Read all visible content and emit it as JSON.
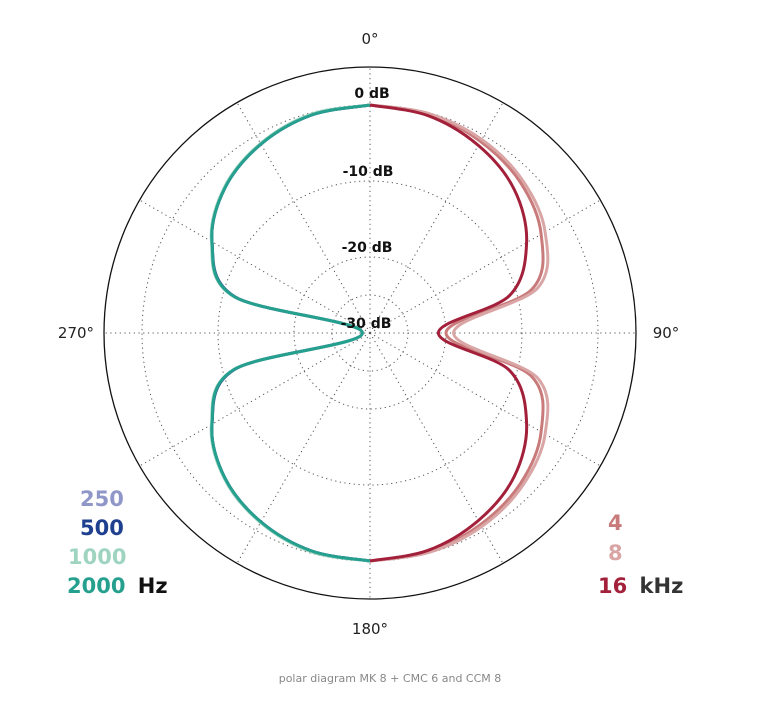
{
  "chart_data": {
    "type": "polar",
    "angle_labels": [
      "0°",
      "90°",
      "180°",
      "270°"
    ],
    "db_labels": [
      "0 dB",
      "-10 dB",
      "-20 dB",
      "-30 dB"
    ],
    "rlim": [
      -30,
      0
    ],
    "grid": true,
    "pattern": "figure-8",
    "legend_low": {
      "placement": "bottom-left",
      "unit": "Hz",
      "entries": [
        {
          "label": "250",
          "color": "#8f96c8"
        },
        {
          "label": "500",
          "color": "#1f3f8f"
        },
        {
          "label": "1000",
          "color": "#9fd4c0"
        },
        {
          "label": "2000",
          "color": "#26a08e"
        }
      ]
    },
    "legend_high": {
      "placement": "bottom-right",
      "unit": "kHz",
      "entries": [
        {
          "label": "4",
          "color": "#c97b7b"
        },
        {
          "label": "8",
          "color": "#d9a5a5"
        },
        {
          "label": "16",
          "color": "#a3203a"
        }
      ]
    },
    "series": [
      {
        "label": "250",
        "side": "left",
        "color": "#8f96c8",
        "points": [
          [
            0,
            0
          ],
          [
            15,
            -0.3
          ],
          [
            30,
            -1.3
          ],
          [
            45,
            -3.0
          ],
          [
            60,
            -6.0
          ],
          [
            75,
            -11.5
          ],
          [
            90,
            -29
          ],
          [
            105,
            -11.5
          ],
          [
            120,
            -6.0
          ],
          [
            135,
            -3.0
          ],
          [
            150,
            -1.3
          ],
          [
            165,
            -0.3
          ],
          [
            180,
            0
          ]
        ]
      },
      {
        "label": "500",
        "side": "left",
        "color": "#1f3f8f",
        "points": [
          [
            0,
            0
          ],
          [
            15,
            -0.3
          ],
          [
            30,
            -1.3
          ],
          [
            45,
            -3.0
          ],
          [
            60,
            -6.0
          ],
          [
            75,
            -11.6
          ],
          [
            90,
            -29
          ],
          [
            105,
            -11.6
          ],
          [
            120,
            -6.0
          ],
          [
            135,
            -3.0
          ],
          [
            150,
            -1.3
          ],
          [
            165,
            -0.3
          ],
          [
            180,
            0
          ]
        ]
      },
      {
        "label": "1000",
        "side": "left",
        "color": "#9fd4c0",
        "points": [
          [
            0,
            0
          ],
          [
            15,
            -0.2
          ],
          [
            30,
            -1.2
          ],
          [
            45,
            -2.9
          ],
          [
            60,
            -5.9
          ],
          [
            75,
            -11.4
          ],
          [
            90,
            -29
          ],
          [
            105,
            -11.4
          ],
          [
            120,
            -5.9
          ],
          [
            135,
            -2.9
          ],
          [
            150,
            -1.2
          ],
          [
            165,
            -0.2
          ],
          [
            180,
            0
          ]
        ]
      },
      {
        "label": "2000",
        "side": "left",
        "color": "#26a08e",
        "points": [
          [
            0,
            0
          ],
          [
            15,
            -0.3
          ],
          [
            30,
            -1.3
          ],
          [
            45,
            -3.0
          ],
          [
            60,
            -6.0
          ],
          [
            75,
            -11.5
          ],
          [
            90,
            -29
          ],
          [
            105,
            -11.5
          ],
          [
            120,
            -6.0
          ],
          [
            135,
            -3.0
          ],
          [
            150,
            -1.3
          ],
          [
            165,
            -0.3
          ],
          [
            180,
            0
          ]
        ]
      },
      {
        "label": "4",
        "side": "right",
        "color": "#c97b7b",
        "points": [
          [
            0,
            0
          ],
          [
            15,
            -0.2
          ],
          [
            30,
            -0.9
          ],
          [
            45,
            -2.0
          ],
          [
            60,
            -4.0
          ],
          [
            75,
            -8.0
          ],
          [
            90,
            -20
          ],
          [
            105,
            -8.0
          ],
          [
            120,
            -4.0
          ],
          [
            135,
            -2.0
          ],
          [
            150,
            -0.9
          ],
          [
            165,
            -0.2
          ],
          [
            180,
            0
          ]
        ]
      },
      {
        "label": "8",
        "side": "right",
        "color": "#d9a5a5",
        "points": [
          [
            0,
            0
          ],
          [
            15,
            -0.1
          ],
          [
            30,
            -0.6
          ],
          [
            45,
            -1.6
          ],
          [
            60,
            -3.4
          ],
          [
            75,
            -7.2
          ],
          [
            90,
            -19
          ],
          [
            105,
            -7.2
          ],
          [
            120,
            -3.4
          ],
          [
            135,
            -1.6
          ],
          [
            150,
            -0.6
          ],
          [
            165,
            -0.1
          ],
          [
            180,
            0
          ]
        ]
      },
      {
        "label": "16",
        "side": "right",
        "color": "#a3203a",
        "points": [
          [
            0,
            0
          ],
          [
            15,
            -0.4
          ],
          [
            30,
            -1.5
          ],
          [
            45,
            -3.2
          ],
          [
            60,
            -6.2
          ],
          [
            75,
            -11.0
          ],
          [
            90,
            -21
          ],
          [
            105,
            -11.0
          ],
          [
            120,
            -6.2
          ],
          [
            135,
            -3.2
          ],
          [
            150,
            -1.5
          ],
          [
            165,
            -0.4
          ],
          [
            180,
            0
          ]
        ]
      }
    ]
  },
  "caption": "polar diagram MK 8 + CMC 6 and CCM 8"
}
